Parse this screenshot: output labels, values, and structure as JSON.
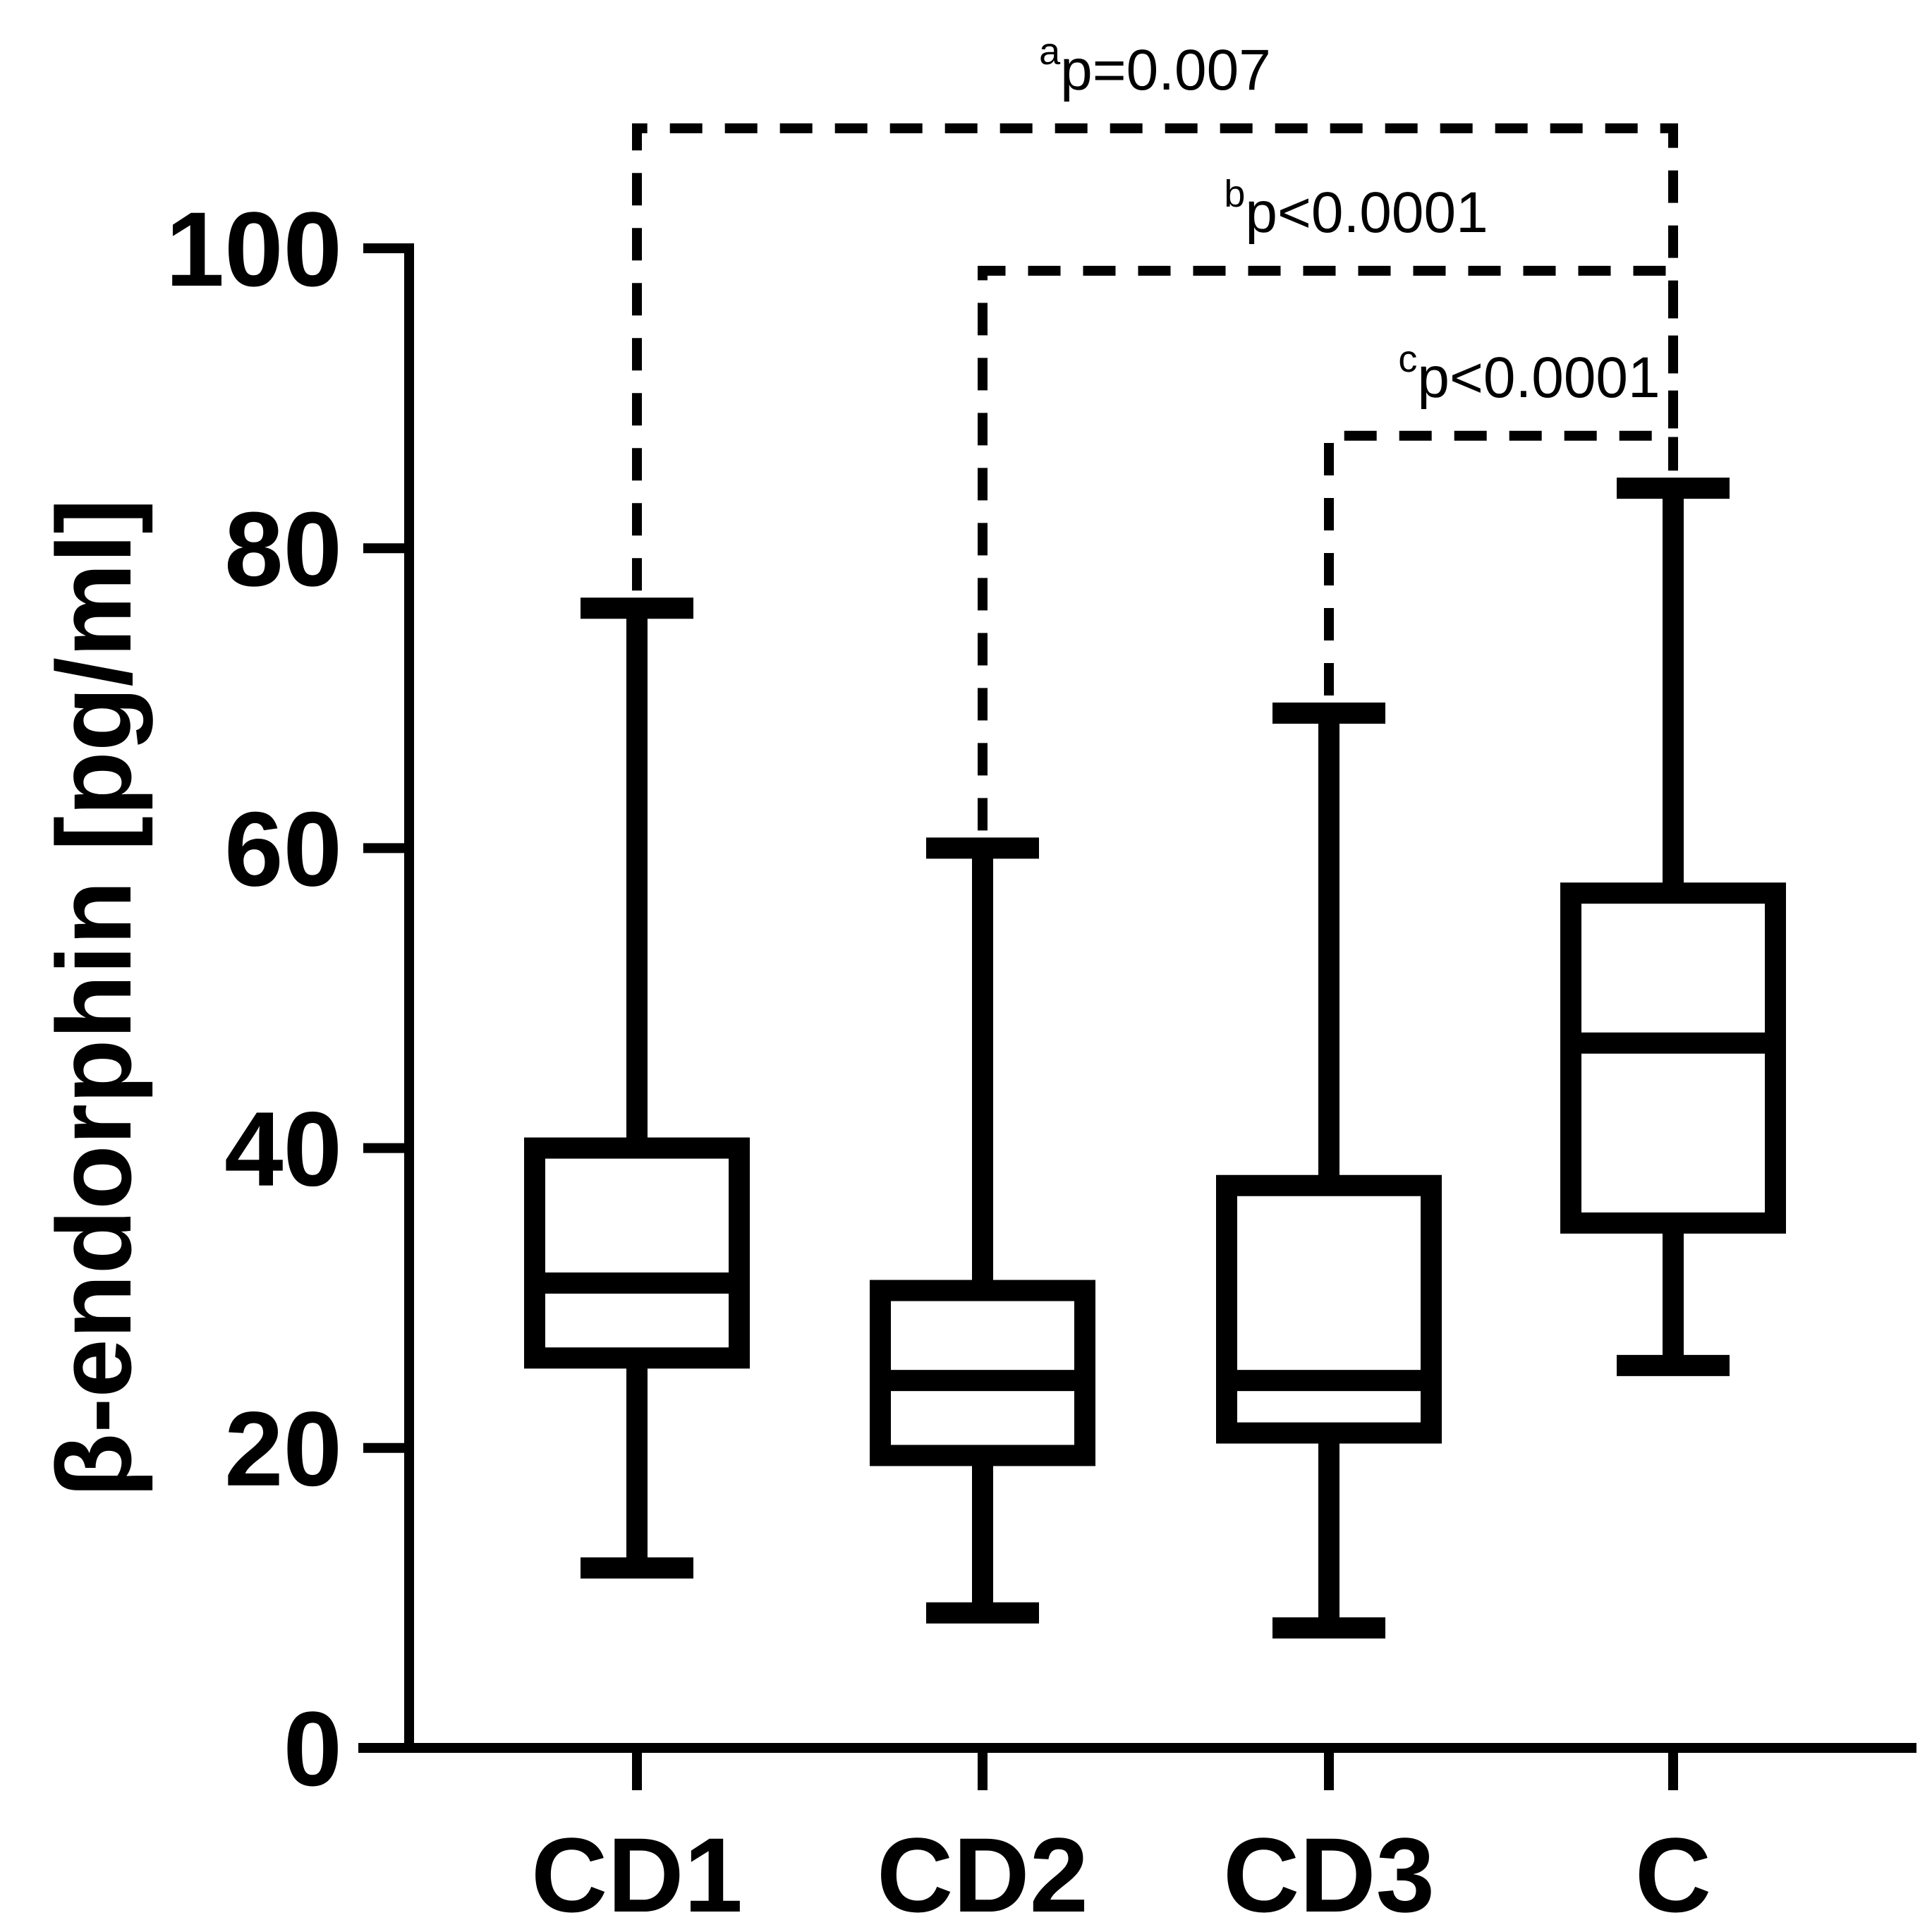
{
  "chart_data": {
    "type": "boxplot",
    "title": "",
    "xlabel": "",
    "ylabel": "β-endorphin [pg/ml]",
    "ylim": [
      0,
      100
    ],
    "yticks": [
      0,
      20,
      40,
      60,
      80,
      100
    ],
    "ytick_labels": [
      "0",
      "20",
      "40",
      "60",
      "80",
      "100"
    ],
    "categories": [
      "CD1",
      "CD2",
      "CD3",
      "C"
    ],
    "boxes": [
      {
        "category": "CD1",
        "min": 12,
        "q1": 26,
        "median": 31,
        "q3": 40,
        "max": 76
      },
      {
        "category": "CD2",
        "min": 9,
        "q1": 19.5,
        "median": 24.5,
        "q3": 30.5,
        "max": 60
      },
      {
        "category": "CD3",
        "min": 8,
        "q1": 21,
        "median": 24.5,
        "q3": 37.5,
        "max": 69
      },
      {
        "category": "C",
        "min": 25.5,
        "q1": 35,
        "median": 47,
        "q3": 57,
        "max": 84
      }
    ],
    "significance": [
      {
        "from": "CD1",
        "to": "C",
        "sup": "a",
        "text": "p=0.007",
        "level": 108
      },
      {
        "from": "CD2",
        "to": "C",
        "sup": "b",
        "text": "p<0.0001",
        "level": 98.5
      },
      {
        "from": "CD3",
        "to": "C",
        "sup": "c",
        "text": "p<0.0001",
        "level": 87.5
      }
    ]
  }
}
